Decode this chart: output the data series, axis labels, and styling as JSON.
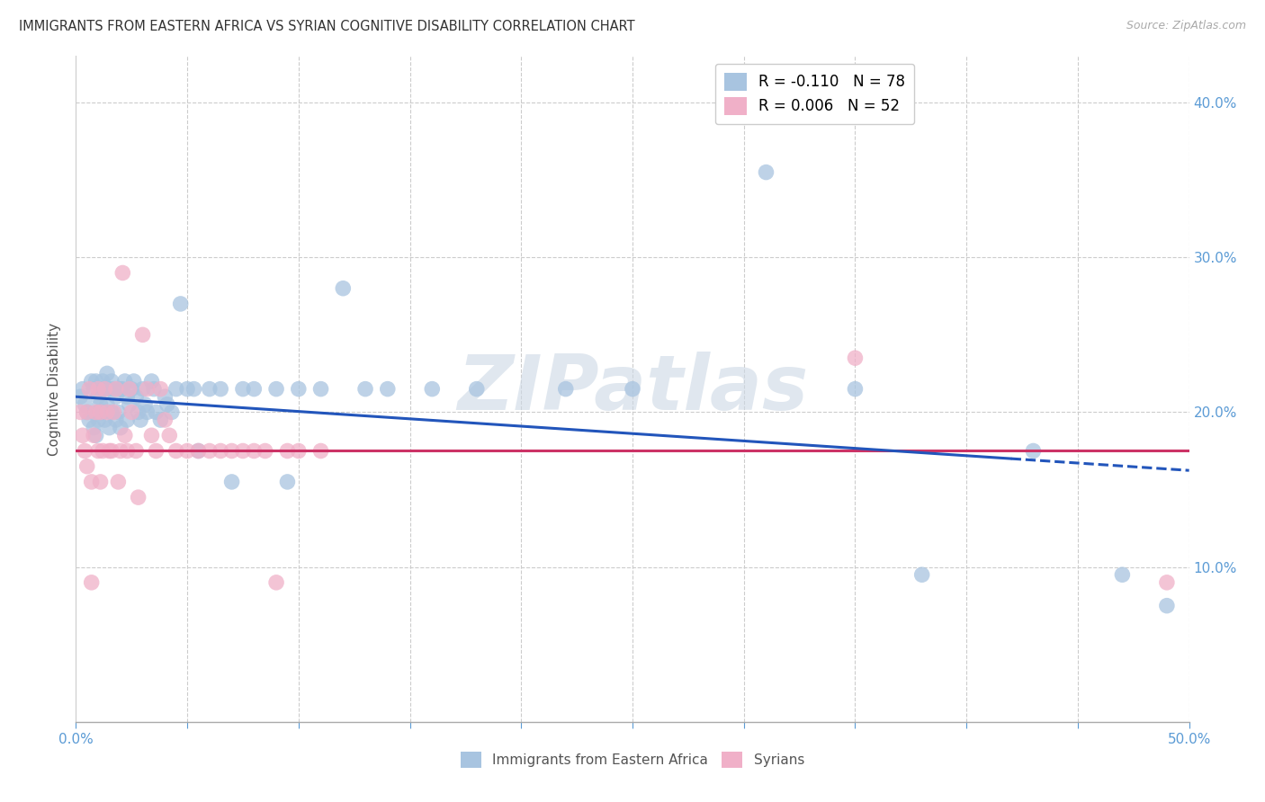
{
  "title": "IMMIGRANTS FROM EASTERN AFRICA VS SYRIAN COGNITIVE DISABILITY CORRELATION CHART",
  "source": "Source: ZipAtlas.com",
  "ylabel": "Cognitive Disability",
  "xlim": [
    0.0,
    0.5
  ],
  "ylim": [
    0.0,
    0.43
  ],
  "xtick_vals": [
    0.0,
    0.05,
    0.1,
    0.15,
    0.2,
    0.25,
    0.3,
    0.35,
    0.4,
    0.45,
    0.5
  ],
  "xtick_labels": [
    "0.0%",
    "",
    "",
    "",
    "",
    "",
    "",
    "",
    "",
    "",
    "50.0%"
  ],
  "ytick_vals": [
    0.1,
    0.2,
    0.3,
    0.4
  ],
  "ytick_labels": [
    "10.0%",
    "20.0%",
    "30.0%",
    "40.0%"
  ],
  "legend_r1": "R = -0.110",
  "legend_n1": "N = 78",
  "legend_r2": "R = 0.006",
  "legend_n2": "N = 52",
  "color_blue": "#a8c4e0",
  "color_pink": "#f0b0c8",
  "color_trendline_blue": "#2255bb",
  "color_trendline_pink": "#cc3366",
  "color_axis": "#5b9bd5",
  "watermark": "ZIPatlas",
  "blue_x": [
    0.002,
    0.003,
    0.004,
    0.005,
    0.006,
    0.007,
    0.008,
    0.008,
    0.009,
    0.009,
    0.01,
    0.01,
    0.01,
    0.011,
    0.011,
    0.012,
    0.012,
    0.013,
    0.013,
    0.014,
    0.014,
    0.015,
    0.015,
    0.016,
    0.016,
    0.017,
    0.018,
    0.018,
    0.019,
    0.02,
    0.02,
    0.021,
    0.022,
    0.023,
    0.023,
    0.024,
    0.025,
    0.026,
    0.027,
    0.028,
    0.029,
    0.03,
    0.031,
    0.032,
    0.034,
    0.035,
    0.036,
    0.038,
    0.04,
    0.041,
    0.043,
    0.045,
    0.047,
    0.05,
    0.053,
    0.055,
    0.06,
    0.065,
    0.07,
    0.075,
    0.08,
    0.09,
    0.095,
    0.1,
    0.11,
    0.12,
    0.13,
    0.14,
    0.16,
    0.18,
    0.22,
    0.25,
    0.31,
    0.35,
    0.38,
    0.43,
    0.47,
    0.49
  ],
  "blue_y": [
    0.21,
    0.215,
    0.205,
    0.2,
    0.195,
    0.22,
    0.19,
    0.215,
    0.185,
    0.22,
    0.2,
    0.21,
    0.195,
    0.215,
    0.205,
    0.22,
    0.2,
    0.215,
    0.195,
    0.225,
    0.205,
    0.215,
    0.19,
    0.22,
    0.2,
    0.215,
    0.21,
    0.195,
    0.2,
    0.215,
    0.19,
    0.215,
    0.22,
    0.21,
    0.195,
    0.205,
    0.215,
    0.22,
    0.21,
    0.2,
    0.195,
    0.215,
    0.205,
    0.2,
    0.22,
    0.215,
    0.2,
    0.195,
    0.21,
    0.205,
    0.2,
    0.215,
    0.27,
    0.215,
    0.215,
    0.175,
    0.215,
    0.215,
    0.155,
    0.215,
    0.215,
    0.215,
    0.155,
    0.215,
    0.215,
    0.28,
    0.215,
    0.215,
    0.215,
    0.215,
    0.215,
    0.215,
    0.355,
    0.215,
    0.095,
    0.175,
    0.095,
    0.075
  ],
  "pink_x": [
    0.002,
    0.003,
    0.004,
    0.005,
    0.005,
    0.006,
    0.007,
    0.007,
    0.008,
    0.009,
    0.01,
    0.01,
    0.011,
    0.011,
    0.012,
    0.013,
    0.014,
    0.015,
    0.016,
    0.017,
    0.018,
    0.019,
    0.02,
    0.021,
    0.022,
    0.023,
    0.024,
    0.025,
    0.027,
    0.028,
    0.03,
    0.032,
    0.034,
    0.036,
    0.038,
    0.04,
    0.042,
    0.045,
    0.05,
    0.055,
    0.06,
    0.065,
    0.07,
    0.075,
    0.08,
    0.085,
    0.09,
    0.095,
    0.1,
    0.11,
    0.35,
    0.49
  ],
  "pink_y": [
    0.2,
    0.185,
    0.175,
    0.2,
    0.165,
    0.215,
    0.155,
    0.09,
    0.185,
    0.2,
    0.175,
    0.215,
    0.155,
    0.2,
    0.175,
    0.215,
    0.2,
    0.175,
    0.175,
    0.2,
    0.215,
    0.155,
    0.175,
    0.29,
    0.185,
    0.175,
    0.215,
    0.2,
    0.175,
    0.145,
    0.25,
    0.215,
    0.185,
    0.175,
    0.215,
    0.195,
    0.185,
    0.175,
    0.175,
    0.175,
    0.175,
    0.175,
    0.175,
    0.175,
    0.175,
    0.175,
    0.09,
    0.175,
    0.175,
    0.175,
    0.235,
    0.09
  ]
}
